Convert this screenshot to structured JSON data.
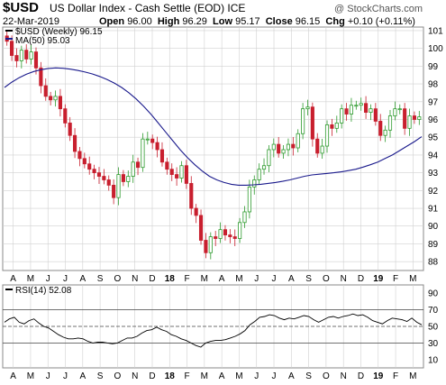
{
  "header": {
    "symbol": "$USD",
    "name": "US Dollar Index - Cash Settle (EOD)",
    "exchange": "ICE",
    "date": "22-Mar-2019",
    "open_label": "Open",
    "open": "96.00",
    "high_label": "High",
    "high": "96.29",
    "low_label": "Low",
    "low": "95.17",
    "close_label": "Close",
    "close": "96.15",
    "chg_label": "Chg",
    "chg": "+0.10 (+0.11%)",
    "credit": "@ StockCharts.com"
  },
  "colors": {
    "up": "#2e9b2e",
    "down": "#c81f2e",
    "ma": "#1a1a8c",
    "rsi": "#000000",
    "grid": "#d0d0d0"
  },
  "chart_data": [
    {
      "type": "candlestick",
      "title": "$USD (Weekly) 96.15",
      "legend": [
        "$USD (Weekly) 96.15",
        "MA(50) 95.03"
      ],
      "legend_placement": "top-left",
      "ylim": [
        87.5,
        101.2
      ],
      "yticks": [
        88,
        89,
        90,
        91,
        92,
        93,
        94,
        95,
        96,
        97,
        98,
        99,
        100,
        101
      ],
      "x_tick_labels": [
        "A",
        "M",
        "J",
        "J",
        "A",
        "S",
        "O",
        "N",
        "D",
        "18",
        "F",
        "M",
        "A",
        "M",
        "J",
        "J",
        "A",
        "S",
        "O",
        "N",
        "D",
        "19",
        "F",
        "M"
      ],
      "grid": true,
      "series": [
        {
          "name": "$USD (Weekly)",
          "close": [
            100.4,
            99.6,
            99.3,
            99.9,
            99.4,
            99.8,
            98.9,
            97.9,
            97.3,
            97.1,
            97.3,
            96.6,
            95.8,
            95.1,
            94.2,
            93.8,
            93.5,
            93.2,
            93.0,
            92.8,
            92.6,
            92.3,
            91.6,
            92.9,
            92.5,
            92.8,
            93.6,
            93.3,
            94.9,
            94.9,
            94.7,
            94.3,
            93.6,
            93.2,
            92.9,
            92.7,
            93.4,
            92.4,
            91.0,
            90.6,
            89.2,
            88.5,
            89.4,
            89.3,
            89.8,
            89.5,
            89.4,
            89.3,
            90.2,
            90.8,
            92.2,
            92.6,
            93.2,
            93.4,
            94.3,
            94.6,
            94.1,
            94.3,
            94.6,
            94.4,
            95.2,
            96.6,
            96.7,
            94.9,
            94.1,
            94.5,
            95.7,
            95.5,
            95.8,
            96.6,
            96.3,
            96.8,
            96.8,
            96.9,
            96.4,
            96.6,
            95.9,
            95.1,
            95.4,
            96.2,
            96.6,
            96.6,
            95.5,
            96.2,
            96.0,
            96.15
          ]
        },
        {
          "name": "MA(50)",
          "values": [
            97.8,
            98.1,
            98.35,
            98.55,
            98.7,
            98.8,
            98.87,
            98.9,
            98.88,
            98.83,
            98.76,
            98.67,
            98.56,
            98.42,
            98.25,
            98.05,
            97.8,
            97.5,
            97.15,
            96.75,
            96.3,
            95.8,
            95.3,
            94.8,
            94.3,
            93.85,
            93.45,
            93.1,
            92.8,
            92.6,
            92.45,
            92.35,
            92.3,
            92.3,
            92.32,
            92.35,
            92.4,
            92.45,
            92.52,
            92.6,
            92.7,
            92.8,
            92.88,
            92.92,
            92.96,
            93.0,
            93.05,
            93.12,
            93.2,
            93.32,
            93.45,
            93.6,
            93.8,
            94.0,
            94.25,
            94.5,
            94.75,
            95.03
          ]
        }
      ]
    },
    {
      "type": "line",
      "title": "RSI(14) 52.08",
      "legend_placement": "top-left",
      "ylim": [
        0,
        100
      ],
      "yticks": [
        10,
        30,
        50,
        70,
        90
      ],
      "reference_lines": [
        30,
        50,
        70
      ],
      "x_tick_labels": [
        "A",
        "M",
        "J",
        "J",
        "A",
        "S",
        "O",
        "N",
        "D",
        "18",
        "F",
        "M",
        "A",
        "M",
        "J",
        "J",
        "A",
        "S",
        "O",
        "N",
        "D",
        "19",
        "F",
        "M"
      ],
      "series": [
        {
          "name": "RSI(14)",
          "values": [
            55,
            59,
            61,
            55,
            53,
            57,
            59,
            54,
            50,
            48,
            44,
            40,
            37,
            35,
            35,
            36,
            35,
            32,
            30,
            31,
            31,
            30,
            29,
            30,
            33,
            36,
            36,
            38,
            42,
            45,
            46,
            49,
            46,
            44,
            40,
            38,
            35,
            33,
            30,
            27,
            25,
            30,
            32,
            33,
            33,
            34,
            36,
            38,
            41,
            45,
            52,
            56,
            61,
            62,
            64,
            63,
            60,
            58,
            60,
            59,
            61,
            63,
            62,
            58,
            55,
            58,
            61,
            62,
            60,
            62,
            63,
            65,
            63,
            64,
            61,
            57,
            55,
            53,
            57,
            60,
            59,
            58,
            56,
            60,
            55,
            52
          ]
        }
      ]
    }
  ]
}
